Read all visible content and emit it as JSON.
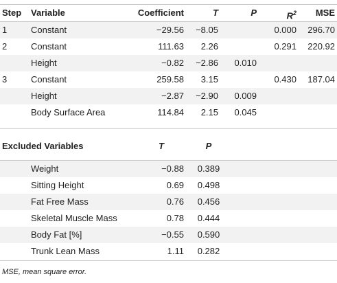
{
  "main": {
    "headers": {
      "step": "Step",
      "variable": "Variable",
      "coefficient": "Coefficient",
      "t": "T",
      "p": "P",
      "r": "R",
      "r_sup": "2",
      "mse": "MSE"
    },
    "rows": [
      {
        "step": "1",
        "variable": "Constant",
        "coefficient": "−29.56",
        "t": "−8.05",
        "p": "",
        "r2": "0.000",
        "mse": "296.70"
      },
      {
        "step": "2",
        "variable": "Constant",
        "coefficient": "111.63",
        "t": "2.26",
        "p": "",
        "r2": "0.291",
        "mse": "220.92"
      },
      {
        "step": "",
        "variable": "Height",
        "coefficient": "−0.82",
        "t": "−2.86",
        "p": "0.010",
        "r2": "",
        "mse": ""
      },
      {
        "step": "3",
        "variable": "Constant",
        "coefficient": "259.58",
        "t": "3.15",
        "p": "",
        "r2": "0.430",
        "mse": "187.04"
      },
      {
        "step": "",
        "variable": "Height",
        "coefficient": "−2.87",
        "t": "−2.90",
        "p": "0.009",
        "r2": "",
        "mse": ""
      },
      {
        "step": "",
        "variable": "Body Surface Area",
        "coefficient": "114.84",
        "t": "2.15",
        "p": "0.045",
        "r2": "",
        "mse": ""
      }
    ]
  },
  "excluded": {
    "headers": {
      "variable": "Excluded Variables",
      "t": "T",
      "p": "P"
    },
    "rows": [
      {
        "variable": "Weight",
        "t": "−0.88",
        "p": "0.389"
      },
      {
        "variable": "Sitting Height",
        "t": "0.69",
        "p": "0.498"
      },
      {
        "variable": "Fat Free Mass",
        "t": "0.76",
        "p": "0.456"
      },
      {
        "variable": "Skeletal Muscle Mass",
        "t": "0.78",
        "p": "0.444"
      },
      {
        "variable": "Body Fat [%]",
        "t": "−0.55",
        "p": "0.590"
      },
      {
        "variable": "Trunk Lean Mass",
        "t": "1.11",
        "p": "0.282"
      }
    ]
  },
  "footnote": "MSE, mean square error."
}
